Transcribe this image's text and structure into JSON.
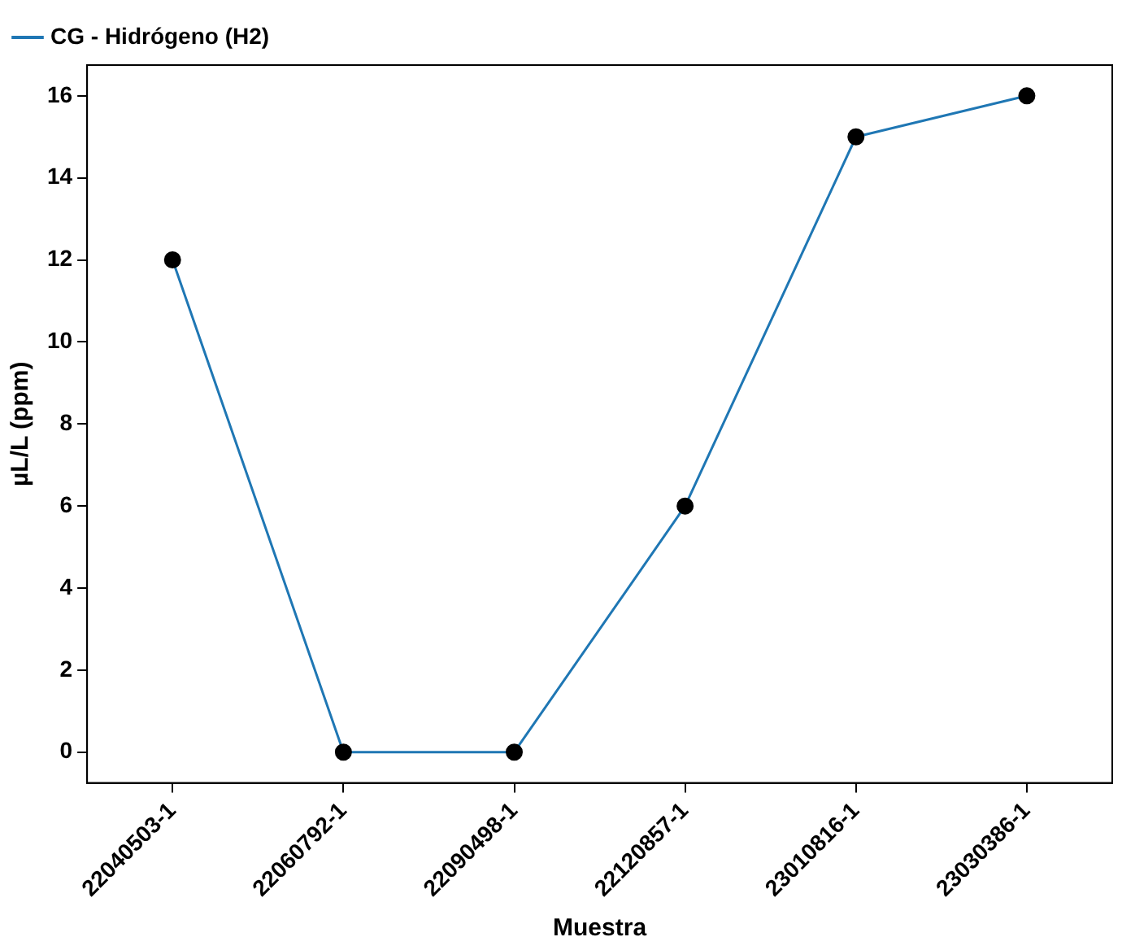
{
  "chart_data": {
    "type": "line",
    "xlabel": "Muestra",
    "ylabel": "µL/L (ppm)",
    "categories": [
      "22040503-1",
      "22060792-1",
      "22090498-1",
      "22120857-1",
      "23010816-1",
      "23030386-1"
    ],
    "series": [
      {
        "name": "CG - Hidrógeno (H2)",
        "color": "#1f77b4",
        "values": [
          12,
          0,
          0,
          6,
          15,
          16
        ]
      }
    ],
    "ylim": [
      -0.75,
      16.75
    ],
    "yticks": [
      0,
      2,
      4,
      6,
      8,
      10,
      12,
      14,
      16
    ],
    "grid": false,
    "legend": "top left",
    "marker": "circle",
    "line_style": "solid"
  }
}
